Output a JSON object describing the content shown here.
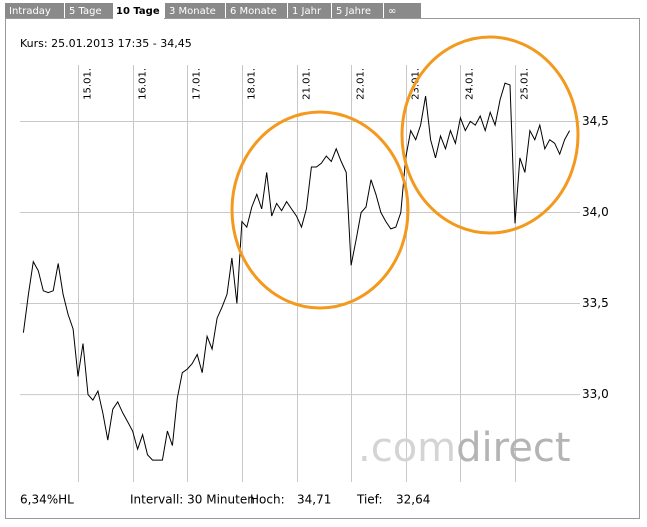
{
  "tabs": [
    "Intraday",
    "5 Tage",
    "10 Tage",
    "3 Monate",
    "6 Monate",
    "1 Jahr",
    "5 Jahre",
    "∞"
  ],
  "active_tab": 2,
  "chart_data": {
    "type": "line",
    "header": "Kurs: 25.01.2013 17:35 - 34,45",
    "categories": [
      null,
      null,
      null,
      null,
      null,
      null,
      null,
      null,
      null,
      null,
      null,
      "15.01.",
      null,
      null,
      null,
      null,
      null,
      null,
      null,
      null,
      null,
      null,
      "16.01.",
      null,
      null,
      null,
      null,
      null,
      null,
      null,
      null,
      null,
      null,
      "17.01.",
      null,
      null,
      null,
      null,
      null,
      null,
      null,
      null,
      null,
      null,
      "18.01.",
      null,
      null,
      null,
      null,
      null,
      null,
      null,
      null,
      null,
      null,
      "21.01.",
      null,
      null,
      null,
      null,
      null,
      null,
      null,
      null,
      null,
      null,
      "22.01.",
      null,
      null,
      null,
      null,
      null,
      null,
      null,
      null,
      null,
      null,
      "23.01.",
      null,
      null,
      null,
      null,
      null,
      null,
      null,
      null,
      null,
      null,
      "24.01.",
      null,
      null,
      null,
      null,
      null,
      null,
      null,
      null,
      null,
      null,
      "25.01.",
      null,
      null,
      null,
      null,
      null,
      null,
      null,
      null,
      null,
      null,
      null
    ],
    "values": [
      33.34,
      33.55,
      33.73,
      33.68,
      33.57,
      33.56,
      33.57,
      33.72,
      33.55,
      33.44,
      33.36,
      33.1,
      33.28,
      33.0,
      32.97,
      33.02,
      32.9,
      32.75,
      32.92,
      32.96,
      32.9,
      32.85,
      32.8,
      32.7,
      32.78,
      32.67,
      32.64,
      32.64,
      32.64,
      32.8,
      32.72,
      32.98,
      33.12,
      33.14,
      33.17,
      33.22,
      33.12,
      33.32,
      33.25,
      33.42,
      33.48,
      33.55,
      33.75,
      33.5,
      33.95,
      33.92,
      34.03,
      34.1,
      34.02,
      34.22,
      33.98,
      34.05,
      34.01,
      34.06,
      34.02,
      33.98,
      33.92,
      34.02,
      34.25,
      34.25,
      34.27,
      34.31,
      34.28,
      34.35,
      34.28,
      34.22,
      33.71,
      33.85,
      34.0,
      34.03,
      34.18,
      34.1,
      34.0,
      33.95,
      33.91,
      33.92,
      34.0,
      34.3,
      34.45,
      34.4,
      34.48,
      34.64,
      34.4,
      34.3,
      34.42,
      34.35,
      34.45,
      34.38,
      34.52,
      34.45,
      34.5,
      34.48,
      34.53,
      34.45,
      34.55,
      34.48,
      34.62,
      34.71,
      34.7,
      33.94,
      34.3,
      34.22,
      34.45,
      34.4,
      34.48,
      34.35,
      34.4,
      34.38,
      34.32,
      34.4,
      34.45
    ],
    "color": "#000000",
    "ylim": [
      32.52,
      34.81
    ],
    "yticks": [
      {
        "value": 33,
        "label": "33,0"
      },
      {
        "value": 33.5,
        "label": "33,5"
      },
      {
        "value": 34,
        "label": "34,0"
      },
      {
        "value": 34.5,
        "label": "34,5"
      }
    ],
    "grid": true,
    "footer": {
      "range": "6,34%HL",
      "interval": "Intervall: 30 Minuten",
      "high_label": "Hoch:",
      "high": "34,71",
      "low_label": "Tief:",
      "low": "32,64"
    },
    "watermark": [
      ".com",
      "direct"
    ]
  }
}
